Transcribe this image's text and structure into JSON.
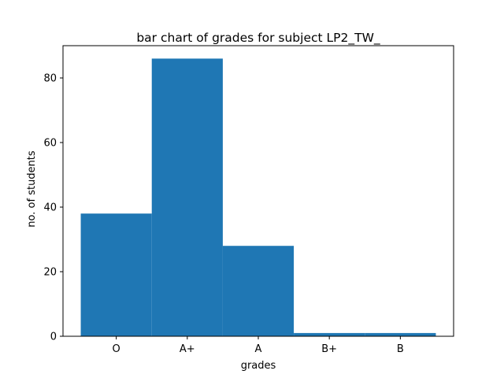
{
  "chart_data": {
    "type": "bar",
    "title": "bar chart of grades for subject LP2_TW_",
    "xlabel": "grades",
    "ylabel": "no. of students",
    "categories": [
      "O",
      "A+",
      "A",
      "B+",
      "B"
    ],
    "values": [
      38,
      86,
      28,
      1,
      1
    ],
    "ylim": [
      0,
      90
    ],
    "yticks": [
      0,
      20,
      40,
      60,
      80
    ],
    "bar_color": "#1f77b4",
    "grid": false,
    "legend": "none"
  }
}
